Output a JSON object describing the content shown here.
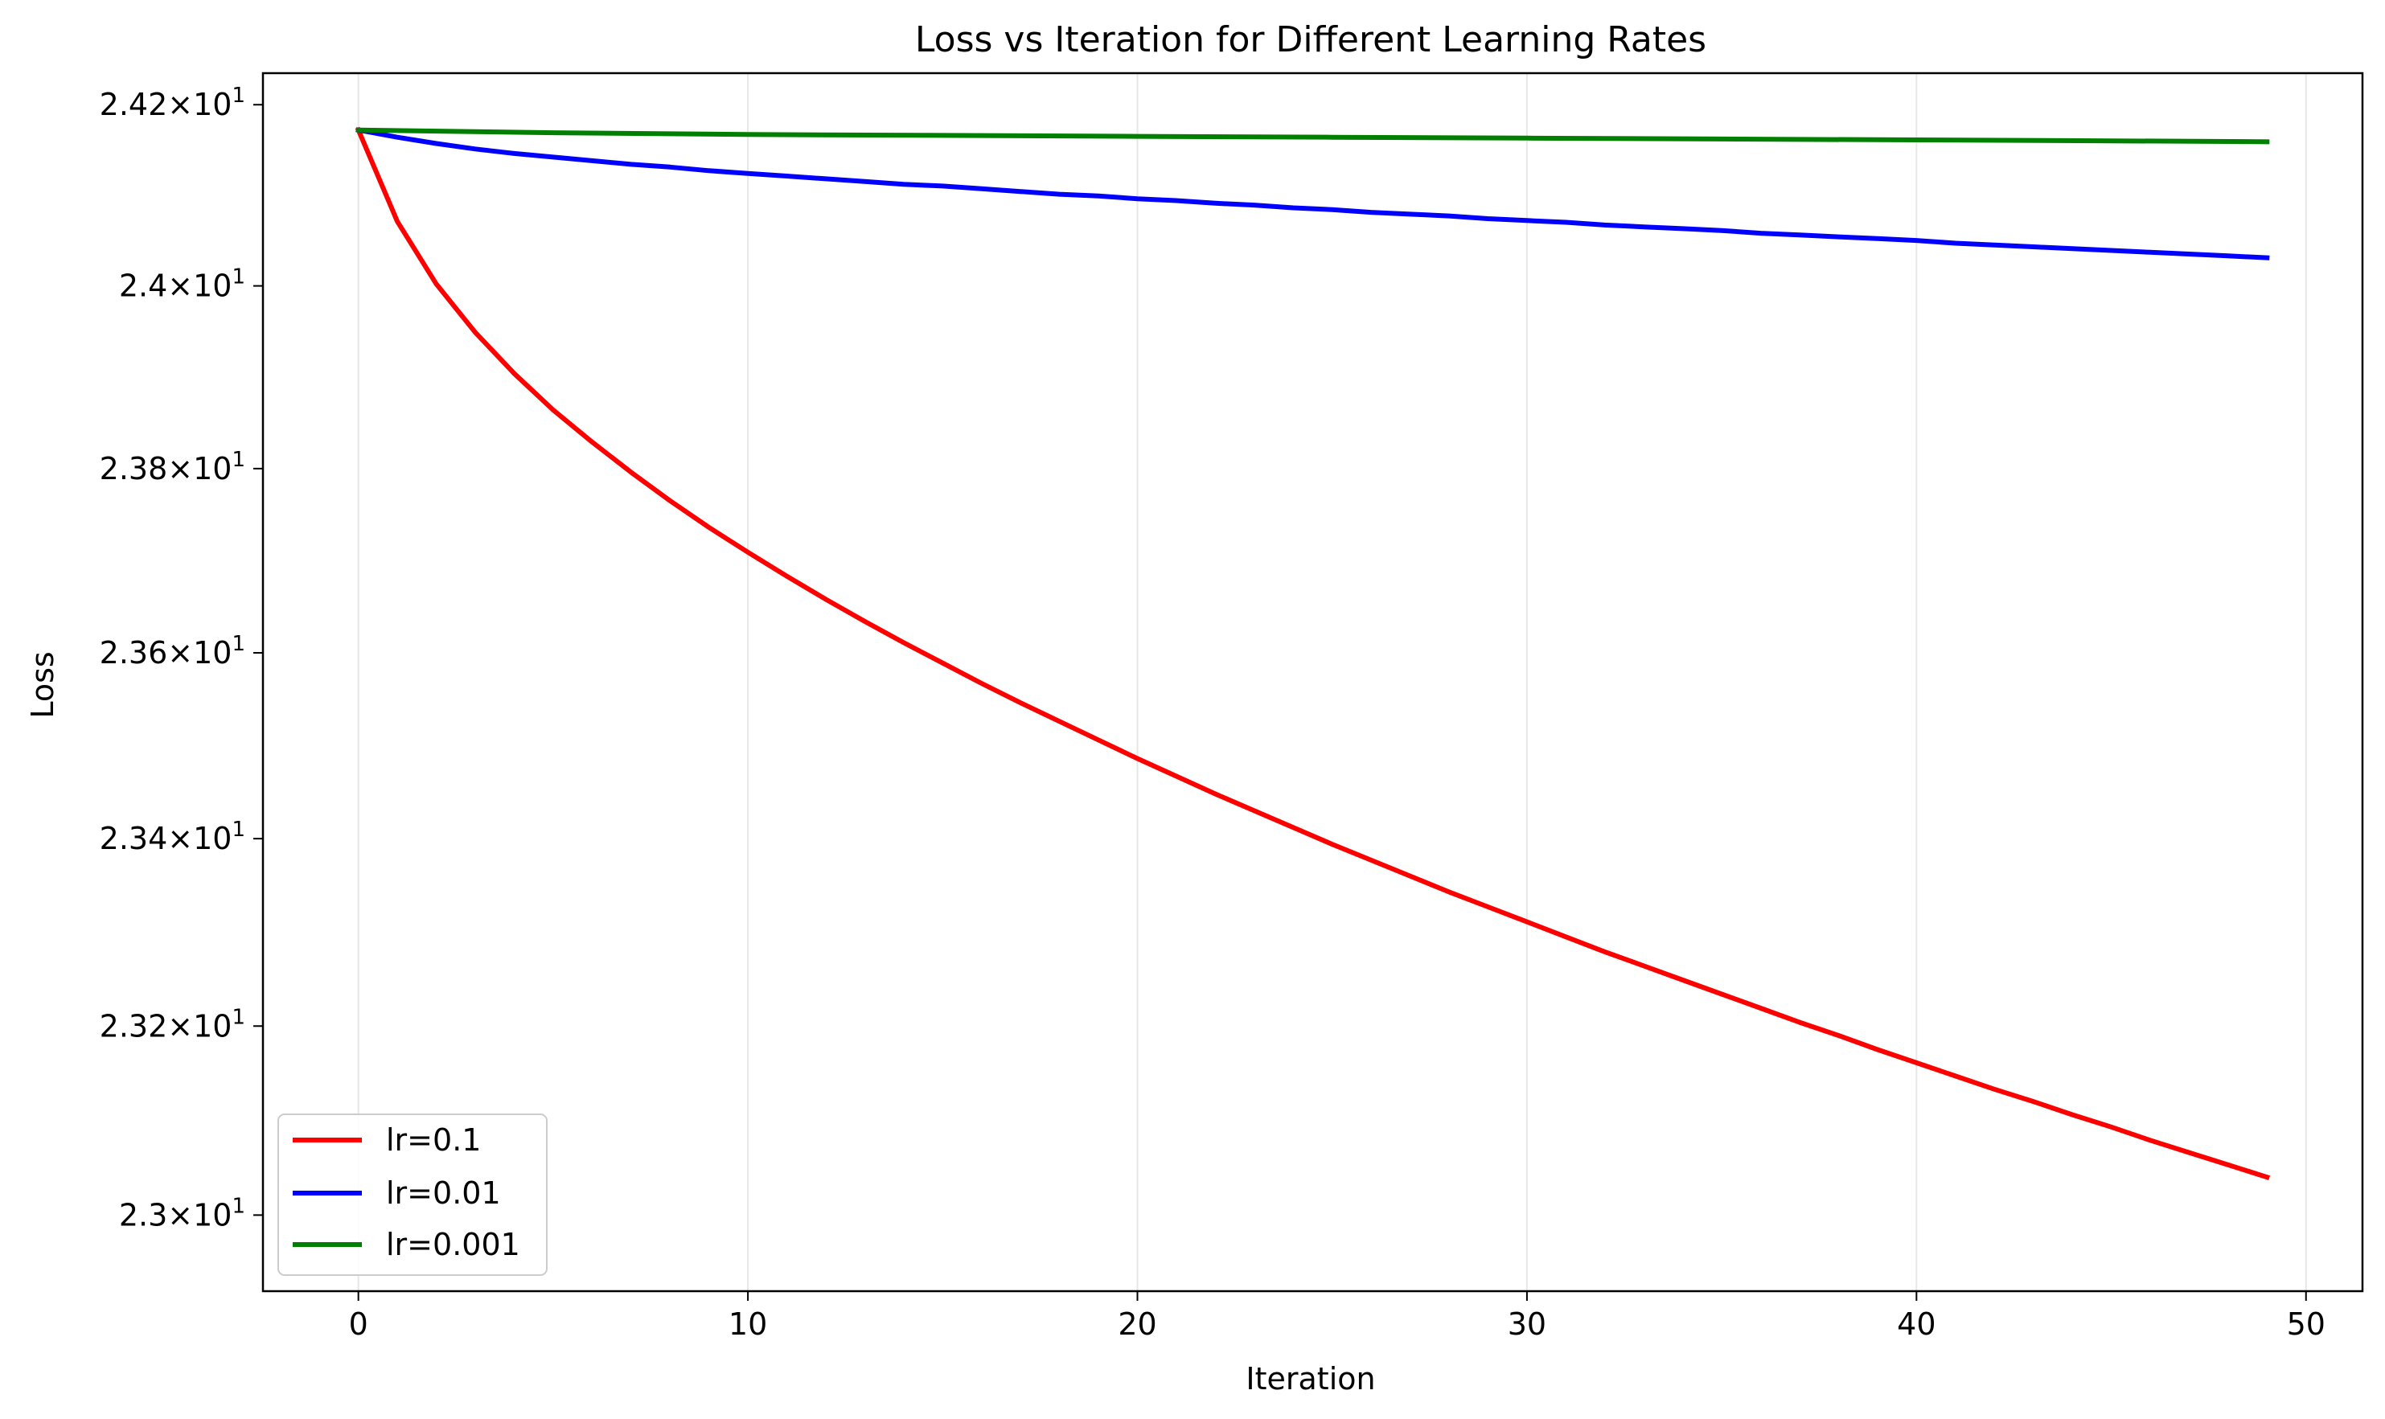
{
  "chart_data": {
    "type": "line",
    "title": "Loss vs Iteration for Different Learning Rates",
    "xlabel": "Iteration",
    "ylabel": "Loss",
    "xlim": [
      -2.45,
      51.45
    ],
    "ylim": [
      22.92,
      24.235
    ],
    "yscale": "log",
    "grid": "x-only",
    "legend_position": "lower-left",
    "xticks": [
      0,
      10,
      20,
      30,
      40,
      50
    ],
    "xtick_labels": [
      "0",
      "10",
      "20",
      "30",
      "40",
      "50"
    ],
    "yticks": [
      23.0,
      23.2,
      23.4,
      23.6,
      23.8,
      24.0,
      24.2
    ],
    "ytick_labels": [
      {
        "mantissa": "2.3",
        "exponent": "1"
      },
      {
        "mantissa": "2.32",
        "exponent": "1"
      },
      {
        "mantissa": "2.34",
        "exponent": "1"
      },
      {
        "mantissa": "2.36",
        "exponent": "1"
      },
      {
        "mantissa": "2.38",
        "exponent": "1"
      },
      {
        "mantissa": "2.4",
        "exponent": "1"
      },
      {
        "mantissa": "2.42",
        "exponent": "1"
      }
    ],
    "times_symbol": "×",
    "base": "10",
    "series": [
      {
        "name": "lr=0.1",
        "color": "#ff0000",
        "x": [
          0,
          1,
          2,
          3,
          4,
          5,
          6,
          7,
          8,
          9,
          10,
          11,
          12,
          13,
          14,
          15,
          16,
          17,
          18,
          19,
          20,
          21,
          22,
          23,
          24,
          25,
          26,
          27,
          28,
          29,
          30,
          31,
          32,
          33,
          34,
          35,
          36,
          37,
          38,
          39,
          40,
          41,
          42,
          43,
          44,
          45,
          46,
          47,
          48,
          49
        ],
        "y": [
          24.172,
          24.071,
          24.002,
          23.949,
          23.904,
          23.864,
          23.829,
          23.796,
          23.765,
          23.736,
          23.709,
          23.683,
          23.658,
          23.634,
          23.611,
          23.589,
          23.567,
          23.546,
          23.526,
          23.506,
          23.486,
          23.467,
          23.448,
          23.43,
          23.412,
          23.394,
          23.377,
          23.36,
          23.343,
          23.327,
          23.311,
          23.295,
          23.279,
          23.264,
          23.249,
          23.234,
          23.219,
          23.204,
          23.19,
          23.175,
          23.161,
          23.147,
          23.133,
          23.12,
          23.106,
          23.093,
          23.079,
          23.066,
          23.053,
          23.04
        ]
      },
      {
        "name": "lr=0.01",
        "color": "#0000ff",
        "x": [
          0,
          1,
          2,
          3,
          4,
          5,
          6,
          7,
          8,
          9,
          10,
          11,
          12,
          13,
          14,
          15,
          16,
          17,
          18,
          19,
          20,
          21,
          22,
          23,
          24,
          25,
          26,
          27,
          28,
          29,
          30,
          31,
          32,
          33,
          34,
          35,
          36,
          37,
          38,
          39,
          40,
          41,
          42,
          43,
          44,
          45,
          46,
          47,
          48,
          49
        ],
        "y": [
          24.172,
          24.164,
          24.157,
          24.151,
          24.146,
          24.142,
          24.138,
          24.134,
          24.131,
          24.127,
          24.124,
          24.121,
          24.118,
          24.115,
          24.112,
          24.11,
          24.107,
          24.104,
          24.101,
          24.099,
          24.096,
          24.094,
          24.091,
          24.089,
          24.086,
          24.084,
          24.081,
          24.079,
          24.077,
          24.074,
          24.072,
          24.07,
          24.067,
          24.065,
          24.063,
          24.061,
          24.058,
          24.056,
          24.054,
          24.052,
          24.05,
          24.047,
          24.045,
          24.043,
          24.041,
          24.039,
          24.037,
          24.035,
          24.033,
          24.031
        ]
      },
      {
        "name": "lr=0.001",
        "color": "#008000",
        "x": [
          0,
          5,
          10,
          15,
          20,
          25,
          30,
          35,
          40,
          45,
          49
        ],
        "y": [
          24.172,
          24.169,
          24.167,
          24.166,
          24.165,
          24.164,
          24.163,
          24.162,
          24.161,
          24.16,
          24.159
        ]
      }
    ]
  }
}
